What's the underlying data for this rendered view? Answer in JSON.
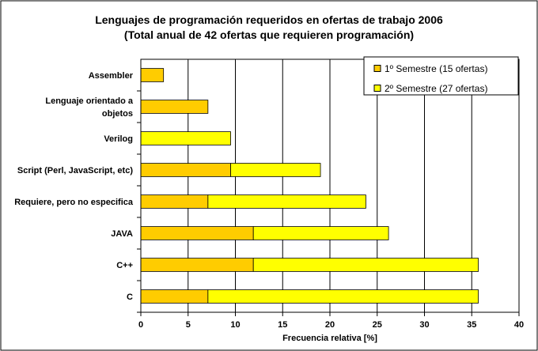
{
  "chart_data": {
    "type": "bar",
    "orientation": "horizontal",
    "stacked": true,
    "title": "Lenguajes de programación requeridos en ofertas de trabajo 2006",
    "subtitle": "(Total anual de 42 ofertas que requieren programación)",
    "xlabel": "Frecuencia relativa [%]",
    "ylabel": "",
    "xlim": [
      0,
      40
    ],
    "xticks": [
      0,
      5,
      10,
      15,
      20,
      25,
      30,
      35,
      40
    ],
    "grid": "vertical",
    "legend_position": "top-right",
    "categories": [
      [
        "Assembler"
      ],
      [
        "Lenguaje orientado a",
        "objetos"
      ],
      [
        "Verilog"
      ],
      [
        "Script (Perl, JavaScript, etc)"
      ],
      [
        "Requiere, pero no especifica"
      ],
      [
        "JAVA"
      ],
      [
        "C++"
      ],
      [
        "C"
      ]
    ],
    "series": [
      {
        "name": "1º Semestre (15 ofertas)",
        "color": "#FFCC00",
        "values": [
          2.4,
          7.1,
          0,
          9.5,
          7.1,
          11.9,
          11.9,
          7.1
        ]
      },
      {
        "name": "2º Semestre (27 ofertas)",
        "color": "#FFFF00",
        "values": [
          0,
          0,
          9.5,
          9.5,
          16.7,
          14.3,
          23.8,
          28.6
        ]
      }
    ]
  }
}
